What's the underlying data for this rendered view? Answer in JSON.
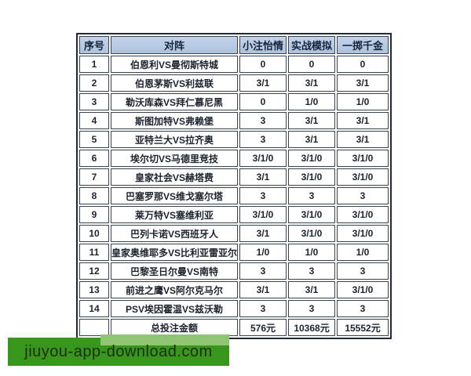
{
  "table": {
    "headers": [
      "序号",
      "对阵",
      "小注怡情",
      "实战模拟",
      "一掷千金"
    ],
    "rows": [
      [
        "1",
        "伯恩利VS曼彻斯特城",
        "0",
        "0",
        "0"
      ],
      [
        "2",
        "伯恩茅斯VS利兹联",
        "3/1",
        "3/1",
        "3/1"
      ],
      [
        "3",
        "勒沃库森VS拜仁慕尼黑",
        "0",
        "1/0",
        "1/0"
      ],
      [
        "4",
        "斯图加特VS弗赖堡",
        "3",
        "3/1",
        "3/1"
      ],
      [
        "5",
        "亚特兰大VS拉齐奥",
        "3",
        "3/1",
        "3/1"
      ],
      [
        "6",
        "埃尔切VS马德里竞技",
        "3/1/0",
        "3/1/0",
        "3/1/0"
      ],
      [
        "7",
        "皇家社会VS赫塔费",
        "3/1",
        "3/1/0",
        "3/1/0"
      ],
      [
        "8",
        "巴塞罗那VS维戈塞尔塔",
        "3",
        "3",
        "3"
      ],
      [
        "9",
        "莱万特VS塞维利亚",
        "3/1/0",
        "3/1/0",
        "3/1/0"
      ],
      [
        "10",
        "巴列卡诺VS西班牙人",
        "3/1",
        "3/1/0",
        "3/1/0"
      ],
      [
        "11",
        "皇家奥维耶多VS比利亚雷亚尔",
        "1/0",
        "1/0",
        "1/0"
      ],
      [
        "12",
        "巴黎圣日尔曼VS南特",
        "3",
        "3",
        "3"
      ],
      [
        "13",
        "前进之鹰VS阿尔克马尔",
        "3/1",
        "3/1",
        "3/1/0"
      ],
      [
        "14",
        "PSV埃因霍温VS兹沃勒",
        "3",
        "3",
        "3"
      ]
    ],
    "total": [
      "",
      "总投注金额",
      "576元",
      "10368元",
      "15552元"
    ]
  },
  "watermark": {
    "text": "jiuyou-app-download.com"
  },
  "colors": {
    "header_bg": "#b7cce6",
    "grid_border": "#39424f",
    "outer_border": "#222b38",
    "watermark_green": "#38961d",
    "watermark_light_green": "#8fc472"
  }
}
